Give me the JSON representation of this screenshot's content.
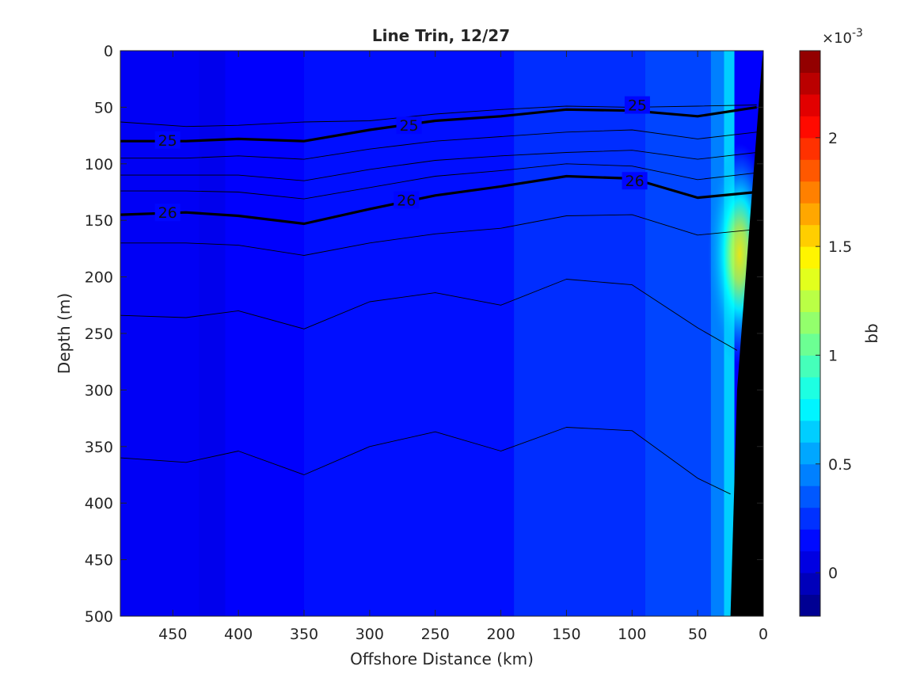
{
  "chart_data": {
    "type": "heatmap",
    "title": "Line Trin, 12/27",
    "xlabel": "Offshore Distance (km)",
    "ylabel": "Depth (m)",
    "xlim": [
      490,
      0
    ],
    "ylim": [
      0,
      500
    ],
    "x_ticks": [
      450,
      400,
      350,
      300,
      250,
      200,
      150,
      100,
      50,
      0
    ],
    "y_ticks": [
      0,
      50,
      100,
      150,
      200,
      250,
      300,
      350,
      400,
      450,
      500
    ],
    "y_reversed": true,
    "x_reversed": true,
    "grid": false,
    "colorbar": {
      "label": "bb",
      "exponent": "×10",
      "exponent_power": "-3",
      "range": [
        -0.2,
        2.4
      ],
      "ticks": [
        0,
        0.5,
        1,
        1.5,
        2
      ],
      "colormap": "jet"
    },
    "field": {
      "background_value": 0.12,
      "bands": [
        {
          "x_from": 490,
          "x_to": 430,
          "value": 0.1
        },
        {
          "x_from": 430,
          "x_to": 410,
          "value": 0.08
        },
        {
          "x_from": 410,
          "x_to": 350,
          "value": 0.12
        },
        {
          "x_from": 350,
          "x_to": 190,
          "value": 0.16
        },
        {
          "x_from": 190,
          "x_to": 90,
          "value": 0.24
        },
        {
          "x_from": 90,
          "x_to": 40,
          "value": 0.3
        },
        {
          "x_from": 40,
          "x_to": 30,
          "value": 0.45
        },
        {
          "x_from": 30,
          "x_to": 22,
          "value": 0.65
        }
      ],
      "hotspot": {
        "x": 18,
        "depth": 180,
        "value": 1.5
      }
    },
    "isopycnals": [
      {
        "depth": [
          63,
          67,
          66,
          63,
          62,
          56,
          52,
          49,
          50,
          49,
          48
        ],
        "x": [
          490,
          440,
          400,
          350,
          300,
          250,
          200,
          150,
          100,
          50,
          5
        ]
      },
      {
        "depth": [
          80,
          80,
          78,
          80,
          70,
          62,
          58,
          52,
          53,
          58,
          50
        ],
        "x": [
          490,
          440,
          400,
          350,
          300,
          250,
          200,
          150,
          100,
          50,
          5
        ],
        "label": "25"
      },
      {
        "depth": [
          95,
          95,
          93,
          96,
          87,
          80,
          76,
          72,
          70,
          78,
          72
        ],
        "x": [
          490,
          440,
          400,
          350,
          300,
          250,
          200,
          150,
          100,
          50,
          5
        ]
      },
      {
        "depth": [
          110,
          110,
          110,
          115,
          105,
          97,
          93,
          90,
          88,
          96,
          90
        ],
        "x": [
          490,
          440,
          400,
          350,
          300,
          250,
          200,
          150,
          100,
          50,
          5
        ]
      },
      {
        "depth": [
          124,
          124,
          125,
          131,
          121,
          111,
          106,
          100,
          102,
          114,
          108
        ],
        "x": [
          490,
          440,
          400,
          350,
          300,
          250,
          200,
          150,
          100,
          50,
          5
        ]
      },
      {
        "depth": [
          145,
          143,
          146,
          153,
          140,
          128,
          120,
          111,
          113,
          130,
          125
        ],
        "x": [
          490,
          440,
          400,
          350,
          300,
          250,
          200,
          150,
          100,
          50,
          5
        ],
        "label": "26"
      },
      {
        "depth": [
          170,
          170,
          172,
          181,
          170,
          162,
          157,
          146,
          145,
          163,
          158
        ],
        "x": [
          490,
          440,
          400,
          350,
          300,
          250,
          200,
          150,
          100,
          50,
          5
        ]
      },
      {
        "depth": [
          234,
          236,
          230,
          246,
          222,
          214,
          225,
          202,
          207,
          245,
          265
        ],
        "x": [
          490,
          440,
          400,
          350,
          300,
          250,
          200,
          150,
          100,
          50,
          20
        ]
      },
      {
        "depth": [
          360,
          364,
          354,
          375,
          350,
          337,
          354,
          333,
          336,
          378,
          392
        ],
        "x": [
          490,
          440,
          400,
          350,
          300,
          250,
          200,
          150,
          100,
          50,
          25
        ]
      }
    ],
    "contour_labels": [
      {
        "text": "25",
        "x": 454,
        "depth": 79
      },
      {
        "text": "25",
        "x": 270,
        "depth": 66
      },
      {
        "text": "25",
        "x": 96,
        "depth": 48
      },
      {
        "text": "26",
        "x": 454,
        "depth": 143
      },
      {
        "text": "26",
        "x": 272,
        "depth": 132
      },
      {
        "text": "26",
        "x": 98,
        "depth": 115
      }
    ],
    "bathymetry": {
      "x": [
        0,
        1,
        20,
        25
      ],
      "depth": [
        0,
        10,
        300,
        500
      ]
    }
  }
}
